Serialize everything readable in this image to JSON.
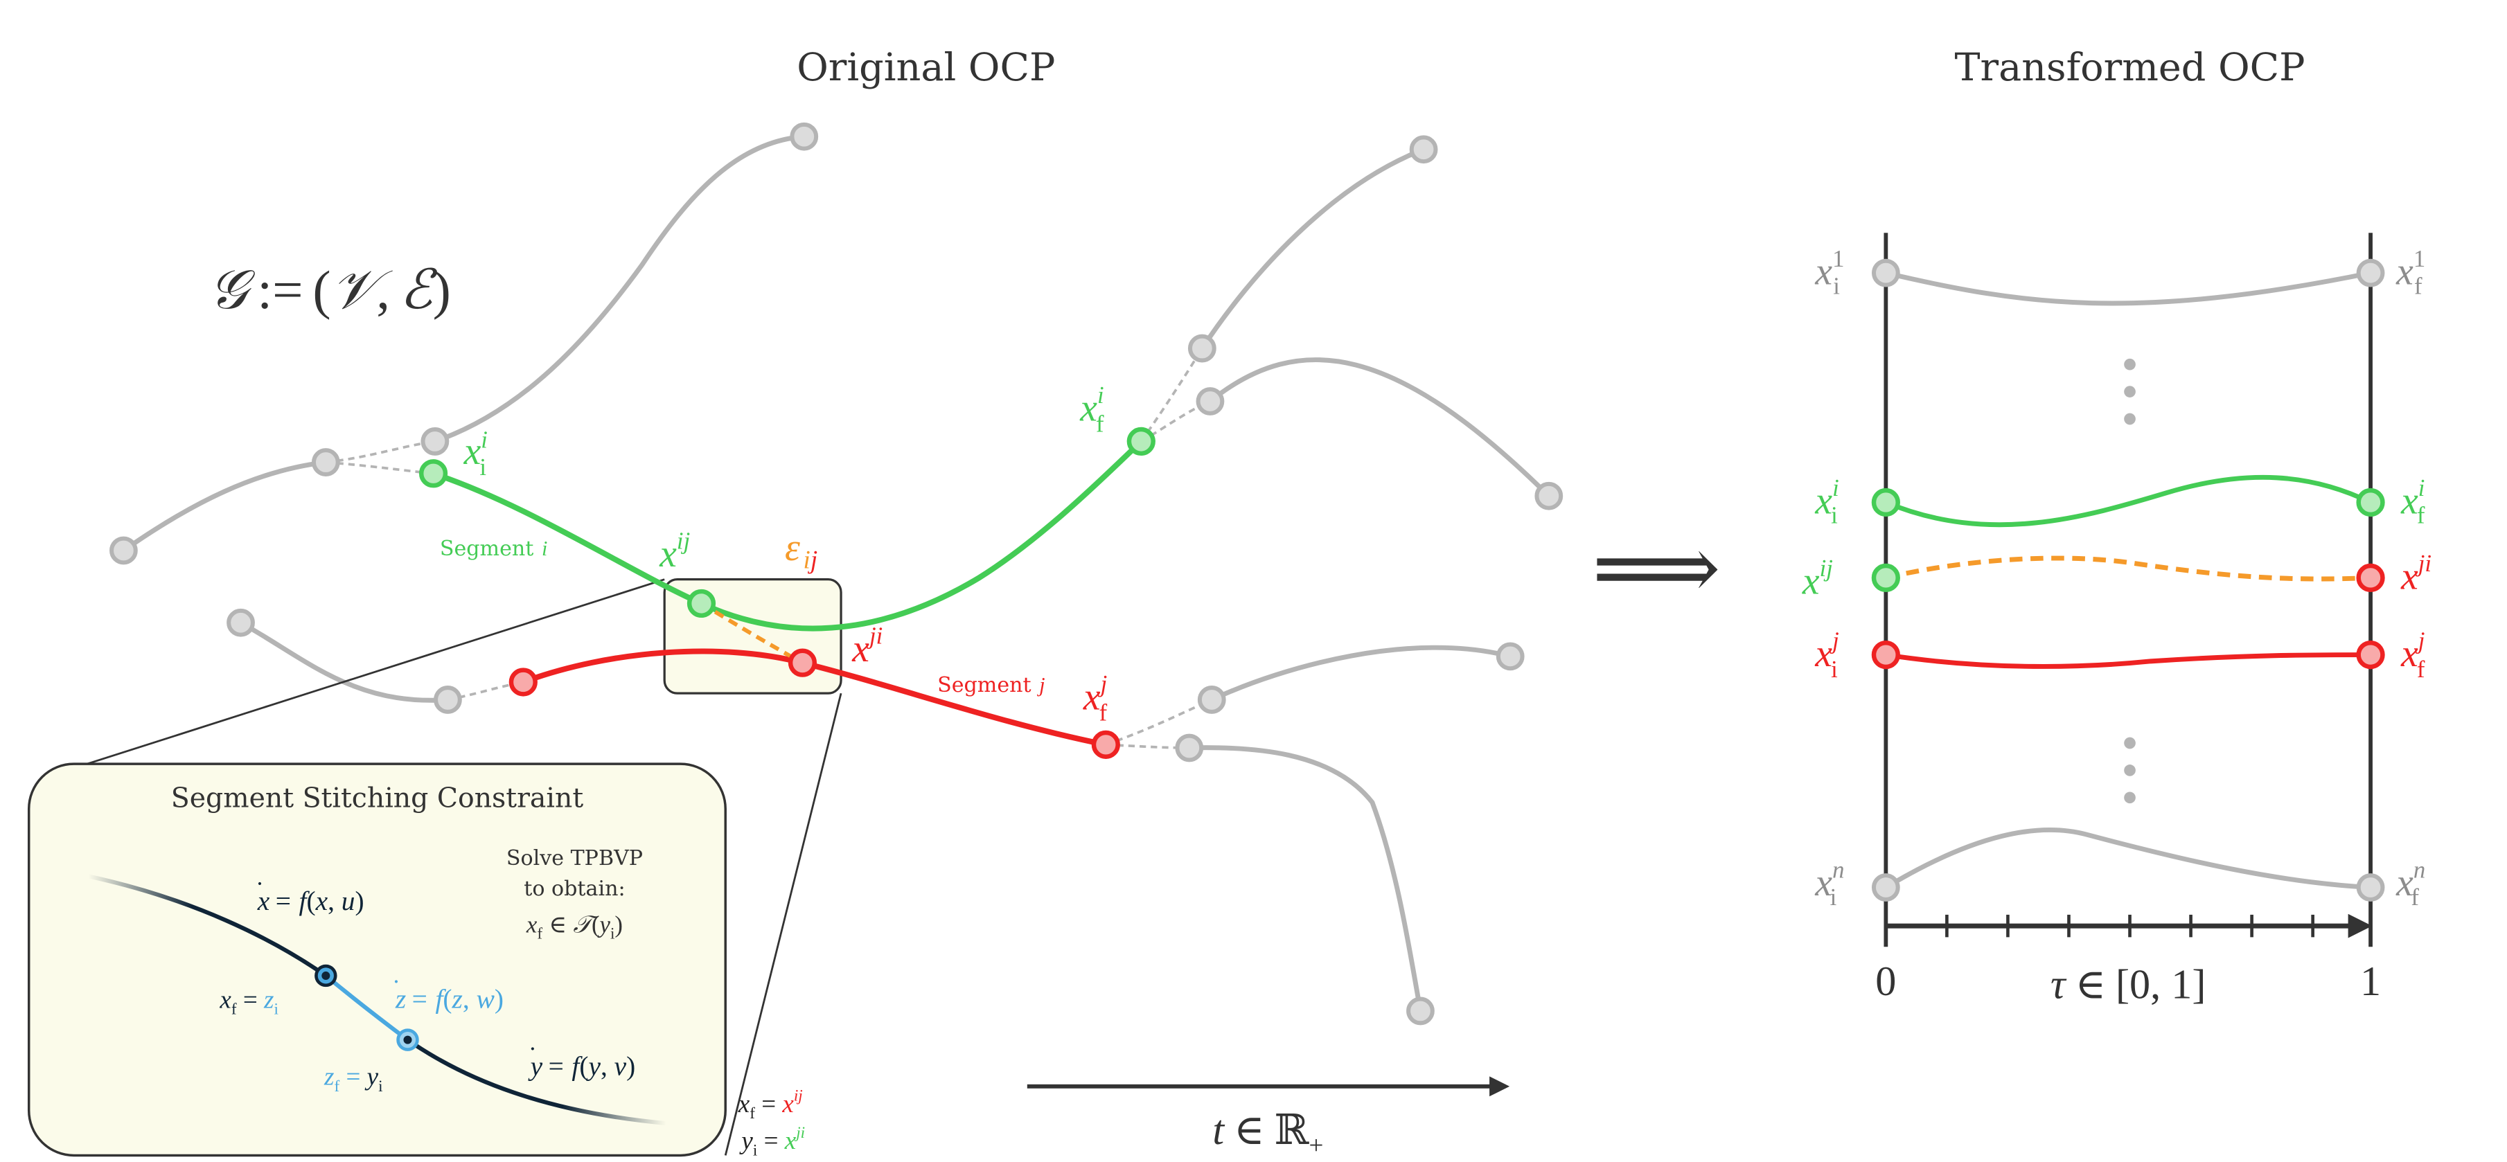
{
  "titles": {
    "original": "Original OCP",
    "transformed": "Transformed OCP"
  },
  "graph_definition": {
    "G": "𝒢",
    "assign": ":=",
    "open": "(",
    "V": "𝒱",
    "comma": ",",
    "E": "ℰ",
    "close": ")"
  },
  "labels": {
    "x": "x",
    "i": "i",
    "j": "j",
    "ij": "ij",
    "ji": "ji",
    "sub_i": "i",
    "sub_f": "f",
    "epsilon": "ε",
    "segment_word": "Segment",
    "segment_i": "i",
    "segment_j": "j",
    "implies": "⟹"
  },
  "stitching_box": {
    "title": "Segment Stitching Constraint",
    "solve_line1": "Solve TPBVP",
    "solve_line2": "to obtain:",
    "x": "x",
    "y": "y",
    "z": "z",
    "f": "f",
    "T": "𝒯",
    "w": "w",
    "u": "u",
    "v": "v",
    "sub_f": "f",
    "sub_i": "i",
    "dot": "˙",
    "eq": "=",
    "in": "∈",
    "paren_open": "(",
    "paren_close": ")",
    "comma": ", ",
    "sup_ij": "ij",
    "sup_ji": "ji"
  },
  "time_axis": {
    "t": "t",
    "in": "∈",
    "R": "ℝ",
    "plus": "+"
  },
  "tau_axis": {
    "tau": "τ",
    "in": "∈",
    "interval": "[0, 1]",
    "zero": "0",
    "one": "1"
  },
  "transformed_rows": {
    "sup_1": "1",
    "sup_n": "n",
    "sup_i": "i",
    "sup_j": "j",
    "sup_ij": "ij",
    "sup_ji": "ji"
  },
  "colors": {
    "gray": "#b4b4b4",
    "gray_fill": "#dcdcdc",
    "gray_text": "#8c8c8c",
    "green": "#44cc55",
    "green_fill": "#b6ecbb",
    "red": "#ee2222",
    "red_fill": "#f8aaaa",
    "orange": "#f59a2a",
    "blue": "#4aa8e0",
    "navy": "#0f2437",
    "dark": "#333333",
    "box_fill": "#fbfbea"
  }
}
